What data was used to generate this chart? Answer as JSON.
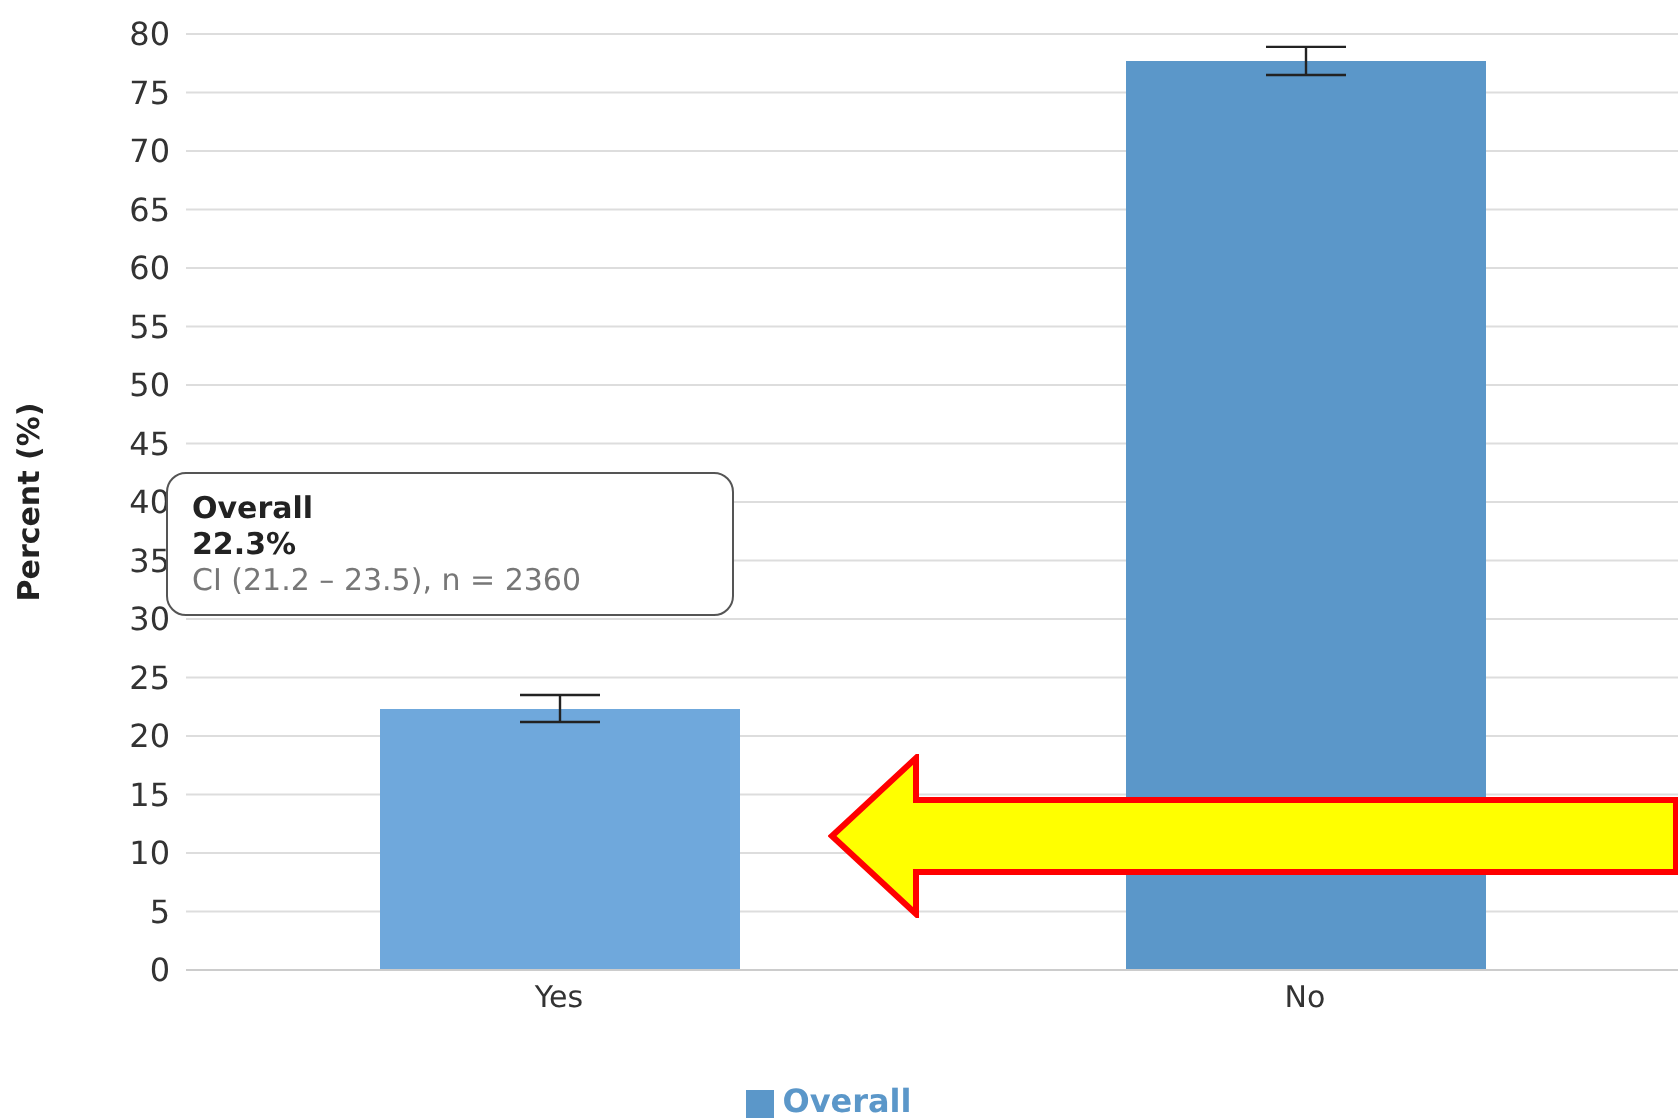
{
  "chart_data": {
    "type": "bar",
    "ylabel": "Percent (%)",
    "categories": [
      "Yes",
      "No"
    ],
    "series": [
      {
        "name": "Overall",
        "color": "#5b97c9",
        "colors": [
          "#6fa8dc",
          "#5b97c9"
        ],
        "values": [
          22.3,
          77.7
        ],
        "errors": [
          [
            21.2,
            23.5
          ],
          [
            76.5,
            78.9
          ]
        ]
      }
    ],
    "ylim": [
      0,
      80
    ],
    "yticks": [
      0,
      5,
      10,
      15,
      20,
      25,
      30,
      35,
      40,
      45,
      50,
      55,
      60,
      65,
      70,
      75,
      80
    ],
    "grid": "y",
    "legend": "bottom",
    "annotations": [
      "Overall",
      "22.3%",
      "CI (21.2 – 23.5), n = 2360"
    ]
  }
}
